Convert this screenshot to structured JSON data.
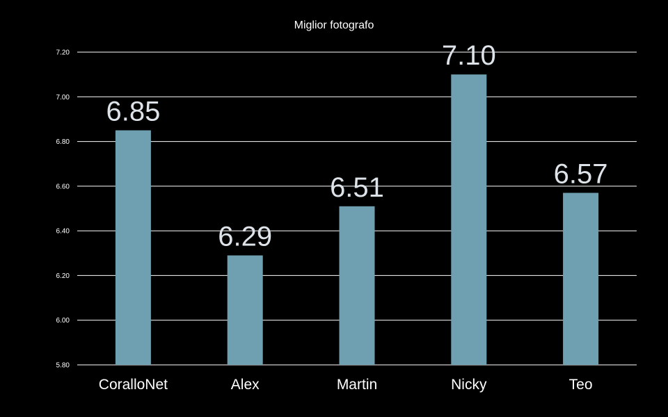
{
  "chart_data": {
    "type": "bar",
    "title": "Miglior fotografo",
    "xlabel": "",
    "ylabel": "",
    "categories": [
      "CoralloNet",
      "Alex",
      "Martin",
      "Nicky",
      "Teo"
    ],
    "values": [
      6.85,
      6.29,
      6.51,
      7.1,
      6.57
    ],
    "data_labels": [
      "6.85",
      "6.29",
      "6.51",
      "7.10",
      "6.57"
    ],
    "ylim": [
      5.8,
      7.2
    ],
    "yticks": [
      "5.80",
      "6.00",
      "6.20",
      "6.40",
      "6.60",
      "6.80",
      "7.00",
      "7.20"
    ],
    "grid": true,
    "legend": "none",
    "colors": {
      "background": "#000000",
      "bar": "#6fa0b1",
      "text": "#ffffff",
      "data_label": "#dde3e8",
      "grid": "#ffffff"
    }
  }
}
